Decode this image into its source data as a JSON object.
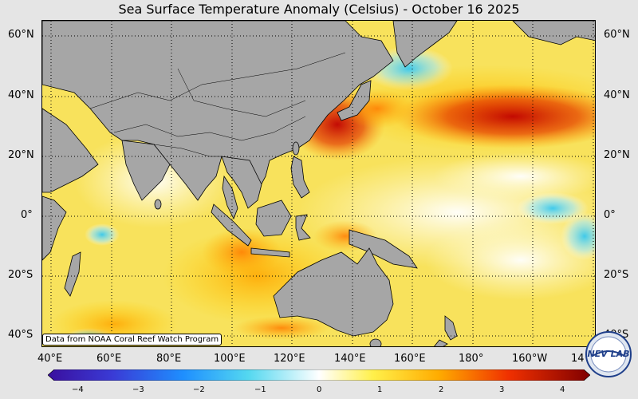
{
  "title": "Sea Surface Temperature Anomaly (Celsius) - October 16 2025",
  "lat_labels": [
    "60°N",
    "40°N",
    "20°N",
    "0°",
    "20°S",
    "40°S"
  ],
  "lon_labels": [
    "40°E",
    "60°E",
    "80°E",
    "100°E",
    "120°E",
    "140°E",
    "160°E",
    "180°",
    "160°W",
    "14"
  ],
  "credit": "Data from NOAA Coral Reef Watch Program",
  "colorbar": {
    "ticks": [
      "−4",
      "−3",
      "−2",
      "−1",
      "0",
      "1",
      "2",
      "3",
      "4"
    ],
    "min": -4,
    "max": 4
  },
  "logo_text": "NEV LAB",
  "colors": {
    "land": "#a6a6a6",
    "warm": "#d81e05",
    "neutral": "#f6e05a",
    "cool": "#4fd6f0"
  }
}
